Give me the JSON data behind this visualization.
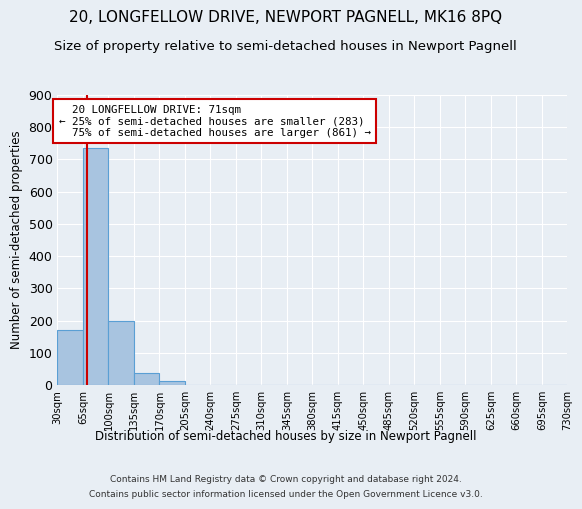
{
  "title": "20, LONGFELLOW DRIVE, NEWPORT PAGNELL, MK16 8PQ",
  "subtitle": "Size of property relative to semi-detached houses in Newport Pagnell",
  "xlabel_dist": "Distribution of semi-detached houses by size in Newport Pagnell",
  "ylabel": "Number of semi-detached properties",
  "footnote1": "Contains HM Land Registry data © Crown copyright and database right 2024.",
  "footnote2": "Contains public sector information licensed under the Open Government Licence v3.0.",
  "bar_edges": [
    30,
    65,
    100,
    135,
    170,
    205,
    240,
    275,
    310,
    345,
    380,
    415,
    450,
    485,
    520,
    555,
    590,
    625,
    660,
    695,
    730
  ],
  "bar_heights": [
    170,
    735,
    198,
    36,
    11,
    0,
    0,
    0,
    0,
    0,
    0,
    0,
    0,
    0,
    0,
    0,
    0,
    0,
    0,
    0
  ],
  "bar_color": "#a8c4e0",
  "bar_edge_color": "#5a9fd4",
  "property_size": 71,
  "pct_smaller": 25,
  "n_smaller": 283,
  "pct_larger": 75,
  "n_larger": 861,
  "property_label": "20 LONGFELLOW DRIVE: 71sqm",
  "line_color": "#cc0000",
  "annotation_box_color": "#cc0000",
  "ylim": [
    0,
    900
  ],
  "yticks": [
    0,
    100,
    200,
    300,
    400,
    500,
    600,
    700,
    800,
    900
  ],
  "background_color": "#e8eef4",
  "grid_color": "#ffffff",
  "title_fontsize": 11,
  "subtitle_fontsize": 9.5
}
